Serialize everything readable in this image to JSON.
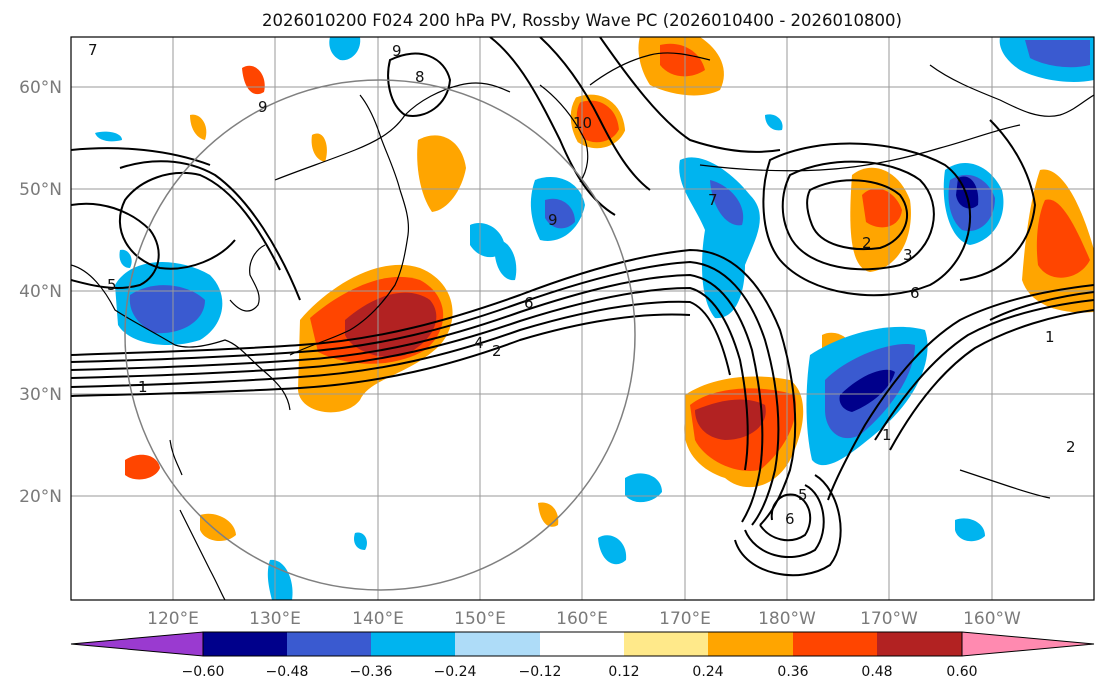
{
  "map": {
    "title": "2026010200 F024 200 hPa PV, Rossby Wave PC (2026010400 - 2026010800)",
    "lat_labels": [
      "60°N",
      "50°N",
      "40°N",
      "30°N",
      "20°N"
    ],
    "lon_labels": [
      "120°E",
      "130°E",
      "140°E",
      "150°E",
      "160°E",
      "170°E",
      "180°W",
      "170°W",
      "160°W"
    ],
    "contour_labels": [
      "7",
      "9",
      "8",
      "9",
      "10",
      "9",
      "7",
      "2",
      "3",
      "6",
      "1",
      "5",
      "2",
      "4",
      "6",
      "1",
      "1",
      "2",
      "5",
      "6"
    ],
    "colorbar": {
      "ticks": [
        "−0.60",
        "−0.48",
        "−0.36",
        "−0.24",
        "−0.12",
        "0.12",
        "0.24",
        "0.36",
        "0.48",
        "0.60"
      ],
      "colors": [
        "#9a3ad0",
        "#00008b",
        "#3a5ad0",
        "#00b4ef",
        "#aedcf8",
        "#ffffff",
        "#ffe98a",
        "#ffa500",
        "#ff4500",
        "#b22222",
        "#ff8ab0"
      ]
    }
  }
}
